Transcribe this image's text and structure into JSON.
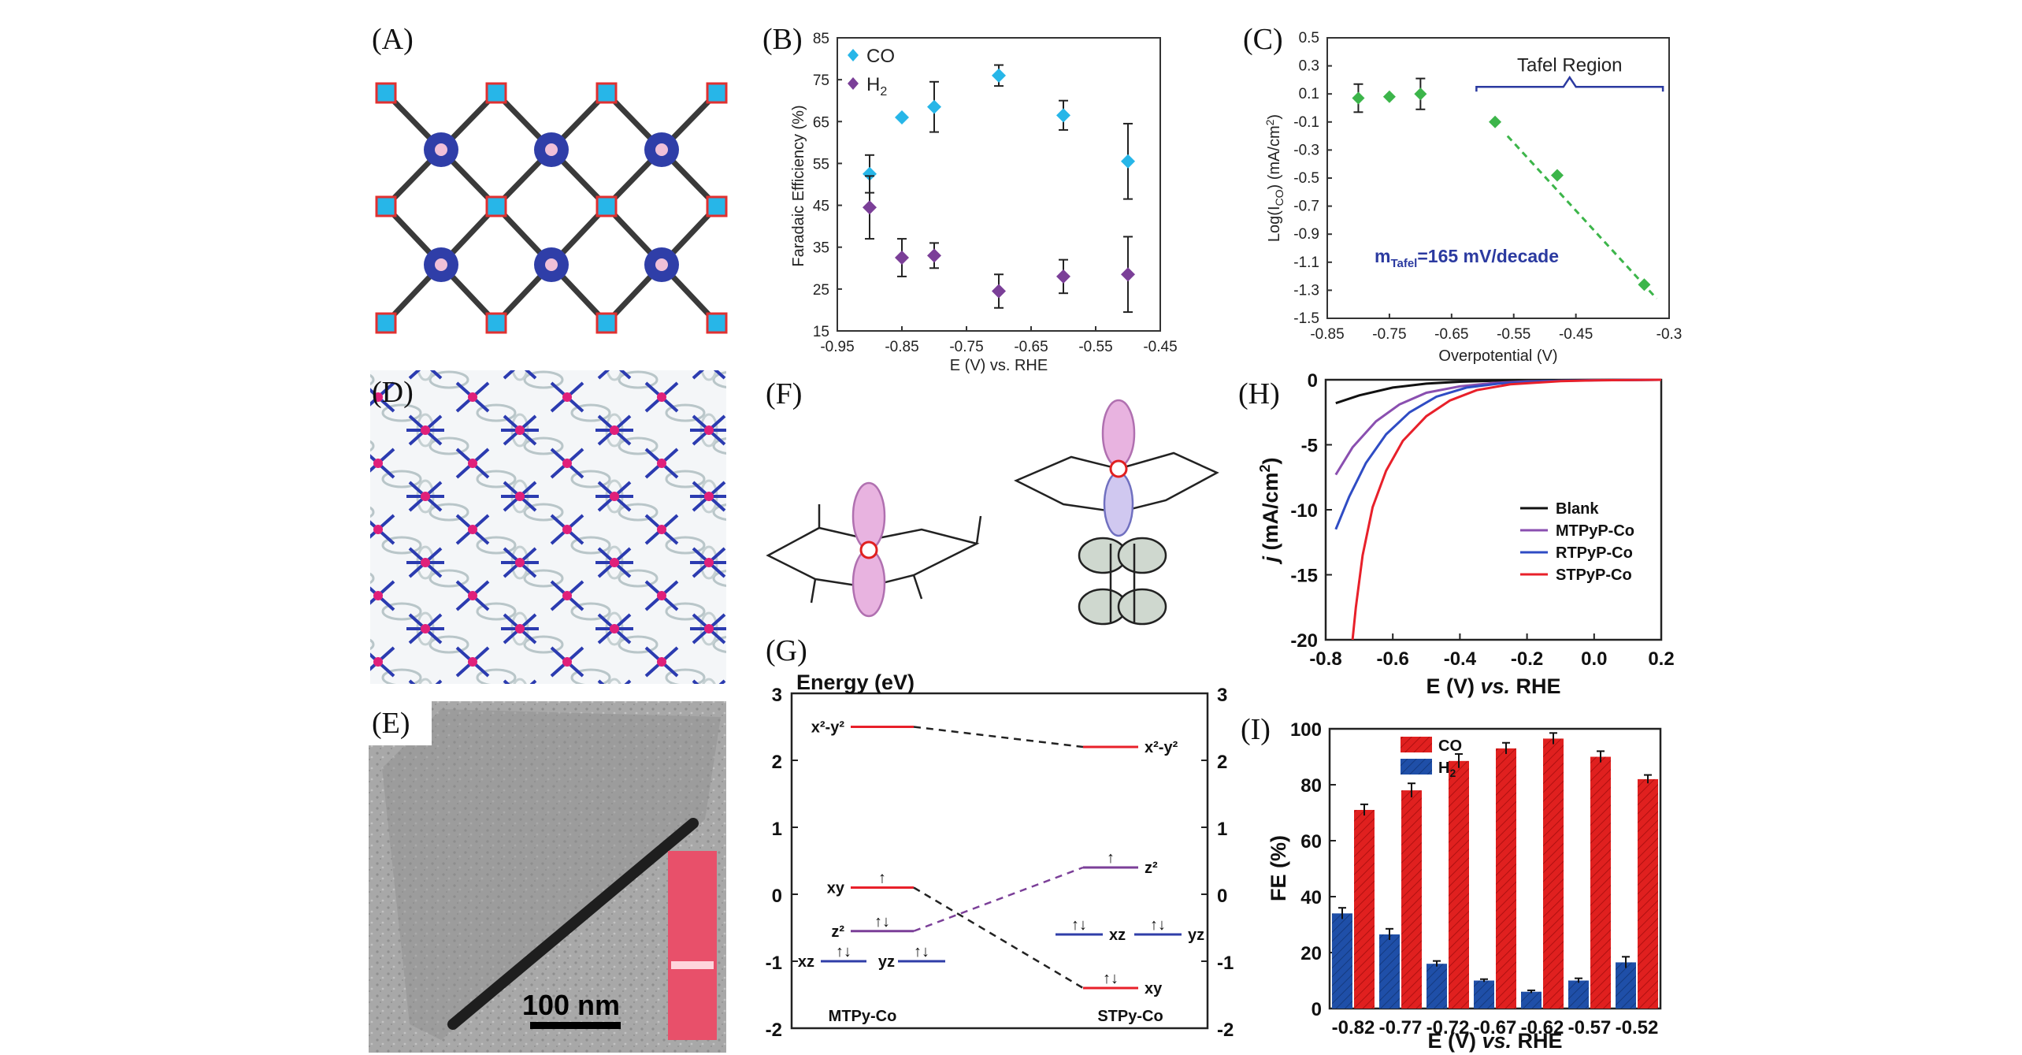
{
  "panels": {
    "A": {
      "label": "(A)"
    },
    "B": {
      "label": "(B)"
    },
    "C": {
      "label": "(C)"
    },
    "D": {
      "label": "(D)"
    },
    "E": {
      "label": "(E)",
      "scale_bar": "100 nm"
    },
    "F": {
      "label": "(F)"
    },
    "G": {
      "label": "(G)"
    },
    "H": {
      "label": "(H)"
    },
    "I": {
      "label": "(I)"
    }
  },
  "colors": {
    "co_diamond": "#27b6e8",
    "h2_diamond": "#7b3f98",
    "tafel_green": "#3cb54a",
    "blank": "#111111",
    "mtpyp": "#8a4fb0",
    "rtpyp": "#2f4cc4",
    "stpyp": "#e8202a",
    "bar_co": "#e0201f",
    "bar_h2": "#1f4fa8"
  },
  "chart_data": [
    {
      "id": "B",
      "type": "scatter",
      "xlabel": "E (V) vs. RHE",
      "ylabel": "Faradaic Efficiency (%)",
      "xlim": [
        -0.95,
        -0.45
      ],
      "ylim": [
        15,
        85
      ],
      "xticks": [
        "-0.95",
        "-0.85",
        "-0.75",
        "-0.65",
        "-0.55",
        "-0.45"
      ],
      "yticks": [
        "15",
        "25",
        "35",
        "45",
        "55",
        "65",
        "75",
        "85"
      ],
      "series": [
        {
          "name": "CO",
          "x": [
            -0.9,
            -0.85,
            -0.8,
            -0.7,
            -0.6,
            -0.5
          ],
          "values": [
            52.5,
            66,
            68.5,
            76,
            66.5,
            55.5
          ],
          "err": [
            4.5,
            0,
            6,
            2.5,
            3.5,
            9
          ]
        },
        {
          "name": "H2",
          "x": [
            -0.9,
            -0.85,
            -0.8,
            -0.7,
            -0.6,
            -0.5
          ],
          "values": [
            44.5,
            32.5,
            33,
            24.5,
            28,
            28.5
          ],
          "err": [
            7.5,
            4.5,
            3,
            4,
            4,
            9
          ]
        }
      ],
      "legend": [
        "CO",
        "H",
        "2"
      ]
    },
    {
      "id": "C",
      "type": "scatter",
      "xlabel": "Overpotential (V)",
      "ylabel": "Log(I",
      "ylabel_sub": "CO",
      "ylabel_tail": ") (mA/cm",
      "ylabel_sup": "2",
      "ylabel_end": ")",
      "xlim": [
        -0.85,
        -0.3
      ],
      "ylim": [
        -1.5,
        0.5
      ],
      "xticks": [
        "-0.85",
        "-0.75",
        "-0.65",
        "-0.55",
        "-0.45",
        "-0.3"
      ],
      "yticks": [
        "0.5",
        "0.3",
        "0.1",
        "-0.1",
        "-0.3",
        "-0.5",
        "-0.7",
        "-0.9",
        "-1.1",
        "-1.3",
        "-1.5"
      ],
      "series": [
        {
          "name": "data",
          "x": [
            -0.8,
            -0.75,
            -0.7,
            -0.58,
            -0.48,
            -0.34
          ],
          "values": [
            0.07,
            0.08,
            0.1,
            -0.1,
            -0.48,
            -1.26
          ],
          "err": [
            0.1,
            0,
            0.11,
            0,
            0,
            0
          ]
        }
      ],
      "tafel_region_label": "Tafel Region",
      "annotation_prefix": "m",
      "annotation_sub": "Tafel",
      "annotation_tail": "=165 mV/decade"
    },
    {
      "id": "G",
      "type": "diagram",
      "ylabel": "Energy (eV)",
      "ylim": [
        -2,
        3
      ],
      "yticks": [
        "3",
        "2",
        "1",
        "0",
        "-1",
        "-2"
      ],
      "left_label": "MTPy-Co",
      "right_label": "STPy-Co",
      "left_levels": [
        {
          "orbital": "x²-y²",
          "energy": 2.5
        },
        {
          "orbital": "xy",
          "energy": 0.1
        },
        {
          "orbital": "z²",
          "energy": -0.55
        },
        {
          "orbital": "xz",
          "energy": -1.0
        },
        {
          "orbital": "yz",
          "energy": -1.0
        }
      ],
      "right_levels": [
        {
          "orbital": "x²-y²",
          "energy": 2.2
        },
        {
          "orbital": "z²",
          "energy": 0.4
        },
        {
          "orbital": "xz",
          "energy": -0.6
        },
        {
          "orbital": "yz",
          "energy": -0.6
        },
        {
          "orbital": "xy",
          "energy": -1.4
        }
      ]
    },
    {
      "id": "H",
      "type": "line",
      "xlabel_pre": "E (V) ",
      "xlabel_it": "vs.",
      "xlabel_post": " RHE",
      "ylabel_it": "j",
      "ylabel_post": " (mA/cm",
      "ylabel_sup": "2",
      "ylabel_end": ")",
      "xlim": [
        -0.8,
        0.2
      ],
      "ylim": [
        -20,
        0
      ],
      "xticks": [
        "-0.8",
        "-0.6",
        "-0.4",
        "-0.2",
        "0.0",
        "0.2"
      ],
      "yticks": [
        "0",
        "-5",
        "-10",
        "-15",
        "-20"
      ],
      "series": [
        {
          "name": "Blank",
          "x": [
            -0.77,
            -0.7,
            -0.6,
            -0.5,
            -0.4,
            -0.3,
            -0.2,
            0.0,
            0.2
          ],
          "values": [
            -1.8,
            -1.2,
            -0.6,
            -0.3,
            -0.15,
            -0.08,
            -0.04,
            -0.02,
            0
          ]
        },
        {
          "name": "MTPyP-Co",
          "x": [
            -0.77,
            -0.72,
            -0.65,
            -0.58,
            -0.5,
            -0.4,
            -0.3,
            -0.2,
            0.0,
            0.2
          ],
          "values": [
            -7.3,
            -5.2,
            -3.2,
            -1.9,
            -1.0,
            -0.5,
            -0.25,
            -0.12,
            -0.04,
            0
          ]
        },
        {
          "name": "RTPyP-Co",
          "x": [
            -0.77,
            -0.73,
            -0.68,
            -0.62,
            -0.55,
            -0.47,
            -0.38,
            -0.28,
            -0.15,
            0.0,
            0.2
          ],
          "values": [
            -11.5,
            -9.0,
            -6.4,
            -4.2,
            -2.5,
            -1.3,
            -0.6,
            -0.28,
            -0.1,
            -0.03,
            0
          ]
        },
        {
          "name": "STPyP-Co",
          "x": [
            -0.72,
            -0.71,
            -0.69,
            -0.66,
            -0.62,
            -0.57,
            -0.5,
            -0.43,
            -0.35,
            -0.25,
            -0.1,
            0.0,
            0.2
          ],
          "values": [
            -20,
            -17.5,
            -13.5,
            -9.8,
            -7.0,
            -4.7,
            -2.8,
            -1.6,
            -0.8,
            -0.35,
            -0.1,
            -0.04,
            0
          ]
        }
      ]
    },
    {
      "id": "I",
      "type": "bar",
      "xlabel_pre": "E (V) ",
      "xlabel_it": "vs.",
      "xlabel_post": " RHE",
      "ylabel": "FE (%)",
      "categories": [
        "-0.82",
        "-0.77",
        "-0.72",
        "-0.67",
        "-0.62",
        "-0.57",
        "-0.52"
      ],
      "ylim": [
        0,
        100
      ],
      "yticks": [
        "0",
        "20",
        "40",
        "60",
        "80",
        "100"
      ],
      "series": [
        {
          "name": "CO",
          "values": [
            71,
            78,
            88.5,
            93,
            96.5,
            90,
            82
          ],
          "err": [
            2,
            2.5,
            2.5,
            2,
            2,
            2,
            1.5
          ]
        },
        {
          "name": "H2",
          "values": [
            34,
            26.5,
            16,
            10,
            6,
            10,
            16.5
          ],
          "err": [
            2,
            2,
            1,
            0.5,
            0.5,
            0.8,
            2
          ]
        }
      ],
      "legend": [
        "CO",
        "H",
        "2"
      ]
    }
  ]
}
